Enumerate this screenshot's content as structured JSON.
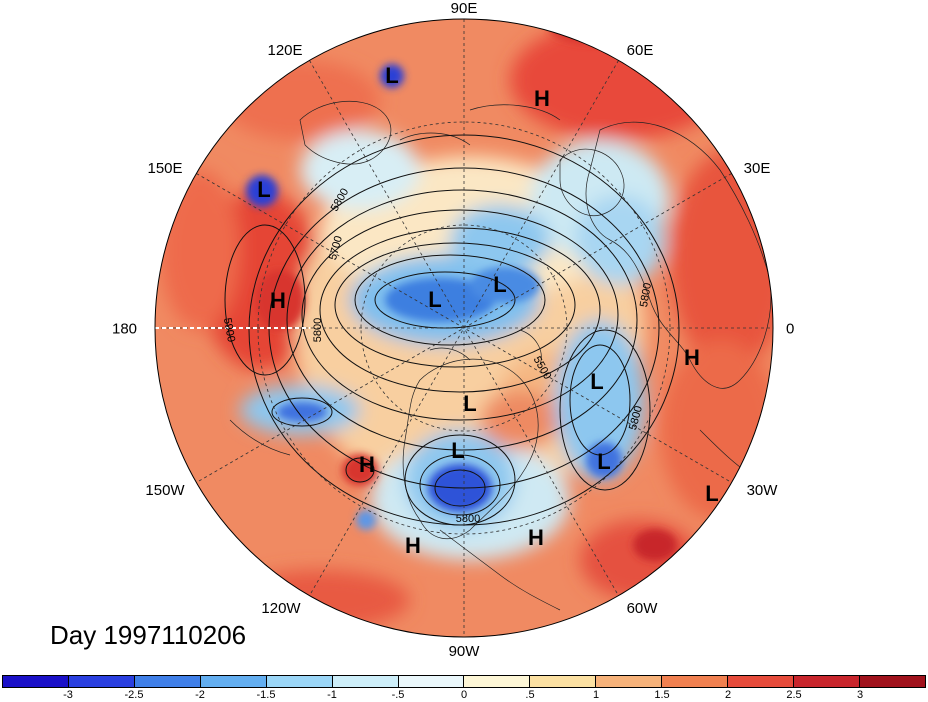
{
  "title": "Day 1997110206",
  "lon_labels": {
    "e90": "90E",
    "e120": "120E",
    "e60": "60E",
    "e150": "150E",
    "e30": "30E",
    "d180": "180",
    "d0": "0",
    "w150": "150W",
    "w30": "30W",
    "w120": "120W",
    "w60": "60W",
    "w90": "90W"
  },
  "systems": {
    "h1": "H",
    "h2": "H",
    "h3": "H",
    "h4": "H",
    "h5": "H",
    "h6": "H",
    "l1": "L",
    "l2": "L",
    "l3": "L",
    "l4": "L",
    "l5": "L",
    "l6": "L",
    "l7": "L",
    "l8": "L",
    "l9": "L"
  },
  "contour_labels": {
    "c1": "5800",
    "c2": "5700",
    "c3": "5900",
    "c4": "5800",
    "c5": "5500",
    "c6": "5800",
    "c7": "5800",
    "c8": "5800"
  },
  "colorbar": {
    "colors": [
      "#1a10c8",
      "#2a3fe0",
      "#3f7fe8",
      "#63aef0",
      "#9bd6f7",
      "#cdeef9",
      "#eaf7fb",
      "#fdf6d6",
      "#fbe0a2",
      "#f6b27a",
      "#f08050",
      "#e64b3b",
      "#c8252c",
      "#a0121c"
    ],
    "tick_labels": [
      "-3",
      "-2.5",
      "-2",
      "-1.5",
      "-1",
      "-.5",
      "0",
      ".5",
      "1",
      "1.5",
      "2",
      "2.5",
      "3"
    ]
  }
}
